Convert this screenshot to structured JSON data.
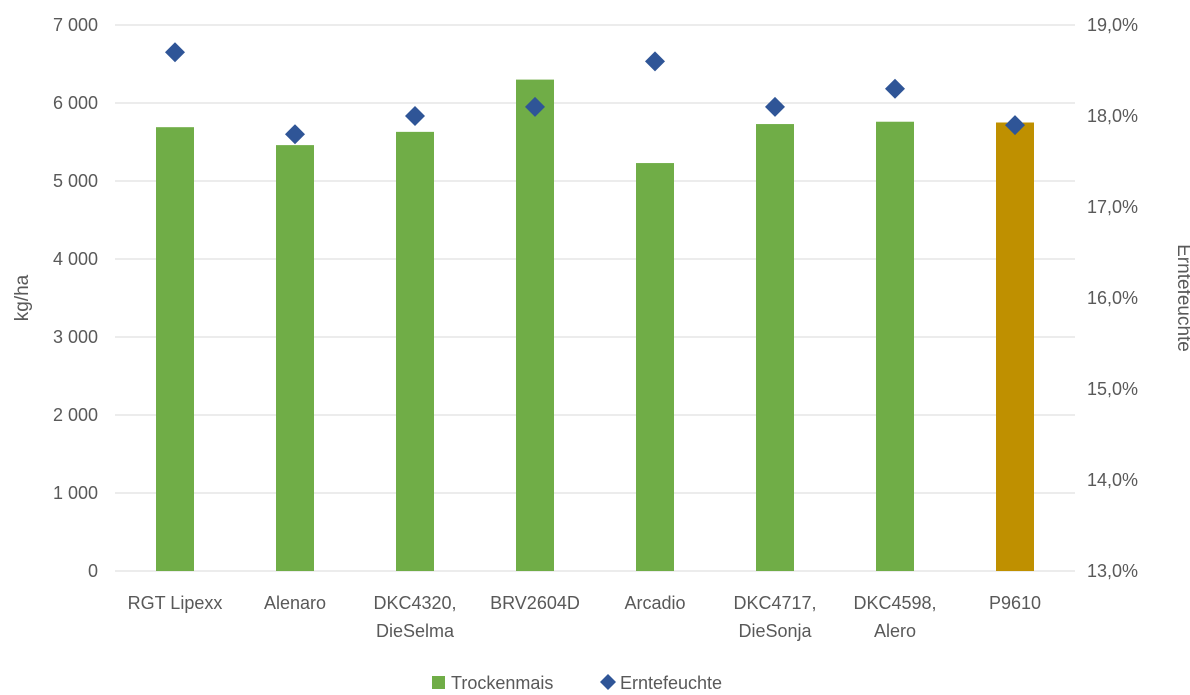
{
  "chart_data": {
    "type": "bar",
    "categories": [
      [
        "RGT Lipexx"
      ],
      [
        "Alenaro"
      ],
      [
        "DKC4320,",
        "DieSelma"
      ],
      [
        "BRV2604D"
      ],
      [
        "Arcadio"
      ],
      [
        "DKC4717,",
        "DieSonja"
      ],
      [
        "DKC4598,",
        "Alero"
      ],
      [
        "P9610"
      ]
    ],
    "series": [
      {
        "name": "Trockenmais",
        "kind": "bar",
        "axis": "left",
        "color": "#70AD47",
        "highlight_color": "#BF9000",
        "highlight_index": 7,
        "values": [
          5690,
          5460,
          5630,
          6300,
          5230,
          5730,
          5760,
          5750
        ]
      },
      {
        "name": "Erntefeuchte",
        "kind": "scatter",
        "marker": "diamond",
        "axis": "right",
        "color": "#2F5597",
        "values": [
          18.7,
          17.8,
          18.0,
          18.1,
          18.6,
          18.1,
          18.3,
          17.9
        ]
      }
    ],
    "y_left": {
      "label": "kg/ha",
      "range": [
        0,
        7000
      ],
      "ticks": [
        0,
        1000,
        2000,
        3000,
        4000,
        5000,
        6000,
        7000
      ],
      "tick_labels": [
        "0",
        "1 000",
        "2 000",
        "3 000",
        "4 000",
        "5 000",
        "6 000",
        "7 000"
      ]
    },
    "y_right": {
      "label": "Erntefeuchte",
      "range": [
        13,
        19
      ],
      "ticks": [
        13,
        14,
        15,
        16,
        17,
        18,
        19
      ],
      "tick_labels": [
        "13,0%",
        "14,0%",
        "15,0%",
        "16,0%",
        "17,0%",
        "18,0%",
        "19,0%"
      ]
    },
    "grid": true,
    "gridline_color": "#D9D9D9",
    "legend_position": "bottom"
  }
}
